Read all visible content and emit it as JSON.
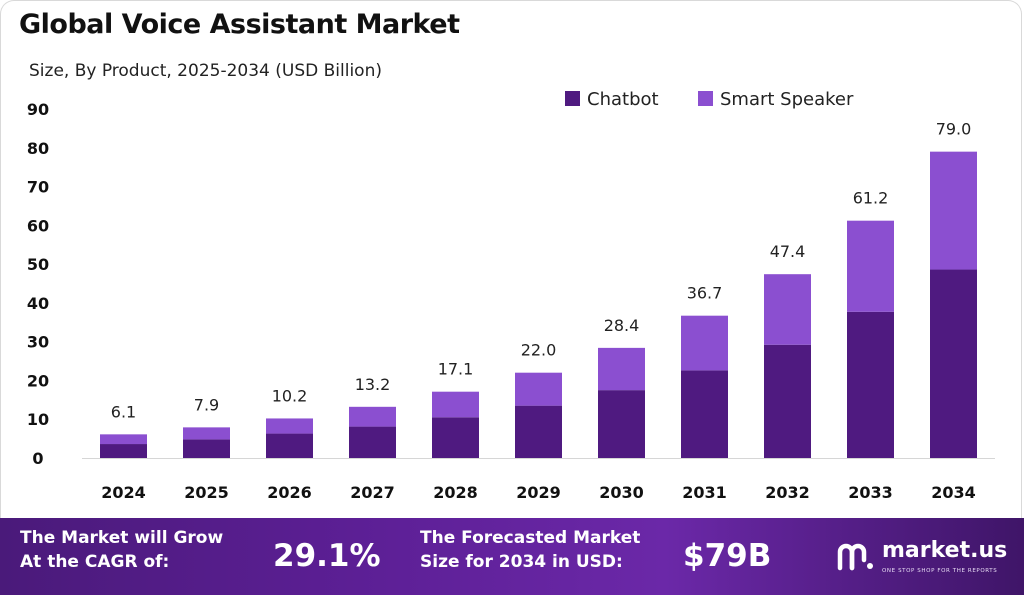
{
  "header": {
    "title": "Global Voice Assistant Market",
    "subtitle": "Size, By Product, 2025-2034 (USD Billion)"
  },
  "chart_data": {
    "type": "bar",
    "stacked": true,
    "categories": [
      "2024",
      "2025",
      "2026",
      "2027",
      "2028",
      "2029",
      "2030",
      "2031",
      "2032",
      "2033",
      "2034"
    ],
    "series": [
      {
        "name": "Chatbot",
        "color": "#4f1a80",
        "values": [
          3.6,
          4.8,
          6.3,
          8.1,
          10.5,
          13.5,
          17.5,
          22.6,
          29.2,
          37.7,
          48.6
        ]
      },
      {
        "name": "Smart Speaker",
        "color": "#8b4fd0",
        "values": [
          2.5,
          3.1,
          3.9,
          5.1,
          6.6,
          8.5,
          10.9,
          14.1,
          18.2,
          23.5,
          30.4
        ]
      }
    ],
    "totals": [
      "6.1",
      "7.9",
      "10.2",
      "13.2",
      "17.1",
      "22.0",
      "28.4",
      "36.7",
      "47.4",
      "61.2",
      "79.0"
    ],
    "ylim": [
      0,
      90
    ],
    "yticks": [
      "0",
      "10",
      "20",
      "30",
      "40",
      "50",
      "60",
      "70",
      "80",
      "90"
    ],
    "grid": false,
    "legend_position": "top-right"
  },
  "footer": {
    "cagr_label_line1": "The Market will Grow",
    "cagr_label_line2": "At the CAGR of:",
    "cagr_value": "29.1%",
    "forecast_label_line1": "The Forecasted Market",
    "forecast_label_line2": "Size for 2034 in USD:",
    "forecast_value": "$79B",
    "brand_name": "market.us",
    "brand_tagline": "ONE STOP SHOP FOR THE REPORTS",
    "logo_icon": "market-us-logo-icon"
  }
}
